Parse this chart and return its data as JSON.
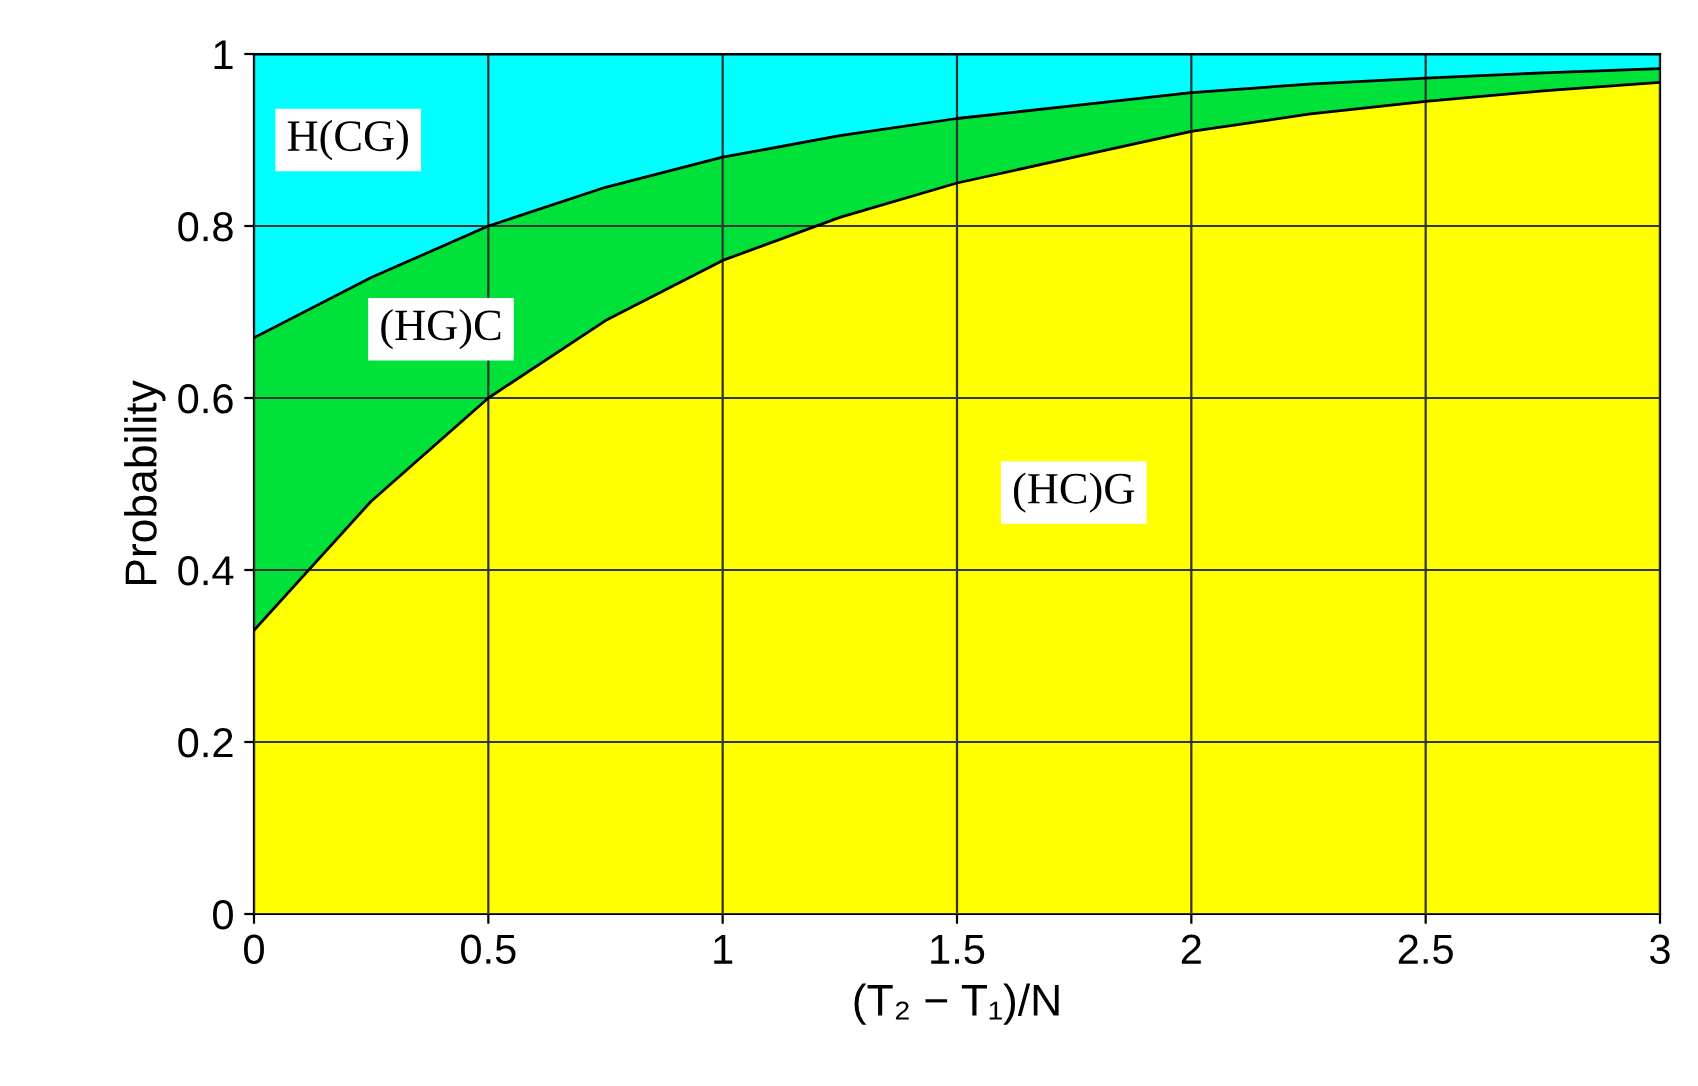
{
  "chart_data": {
    "type": "area",
    "stacked": true,
    "xlabel": "(T₂ − T₁)/N",
    "ylabel": "Probability",
    "x": [
      0,
      0.25,
      0.5,
      0.75,
      1,
      1.25,
      1.5,
      1.75,
      2,
      2.25,
      2.5,
      2.75,
      3
    ],
    "series": [
      {
        "name": "(HC)G",
        "color": "#ffff00",
        "values": [
          0.33,
          0.48,
          0.6,
          0.69,
          0.76,
          0.81,
          0.85,
          0.88,
          0.91,
          0.93,
          0.945,
          0.957,
          0.967
        ]
      },
      {
        "name": "(HG)C",
        "color": "#00e23a",
        "values": [
          0.34,
          0.26,
          0.2,
          0.155,
          0.12,
          0.095,
          0.075,
          0.06,
          0.045,
          0.035,
          0.027,
          0.021,
          0.016
        ]
      },
      {
        "name": "H(CG)",
        "color": "#00ffff",
        "values": [
          0.33,
          0.26,
          0.2,
          0.155,
          0.12,
          0.095,
          0.075,
          0.06,
          0.045,
          0.035,
          0.028,
          0.022,
          0.017
        ]
      }
    ],
    "xlim": [
      0,
      3
    ],
    "ylim": [
      0,
      1
    ],
    "xticks": [
      0,
      0.5,
      1,
      1.5,
      2,
      2.5,
      3
    ],
    "yticks": [
      0,
      0.2,
      0.4,
      0.6,
      0.8,
      1
    ],
    "grid": true,
    "legend": false
  }
}
